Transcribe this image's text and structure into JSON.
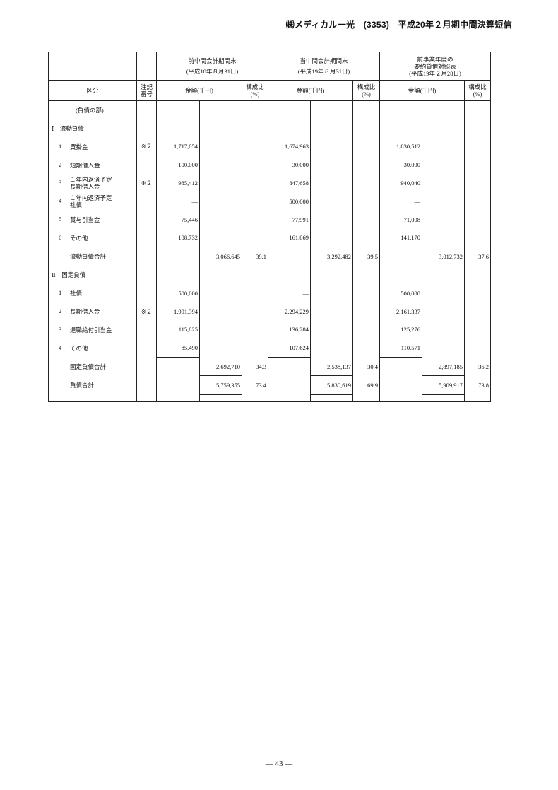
{
  "header": {
    "company": "㈱メディカル一光",
    "code": "(3353)",
    "title": "平成20年２月期中間決算短信"
  },
  "table": {
    "col_category": "区分",
    "col_note": "注記\n番号",
    "col_amount": "金額(千円)",
    "col_ratio": "構成比\n(%)",
    "periods": [
      {
        "title": "前中間会計期間末",
        "date": "(平成18年８月31日)"
      },
      {
        "title": "当中間会計期間末",
        "date": "(平成19年８月31日)"
      },
      {
        "title": "前事業年度の\n要約貸借対照表",
        "date": "(平成19年２月28日)"
      }
    ],
    "rows": [
      {
        "type": "part",
        "label": "(負債の部)"
      },
      {
        "type": "section",
        "label": "Ⅰ　流動負債"
      },
      {
        "type": "item",
        "no": "1",
        "label": "買掛金",
        "note": "※２",
        "vals": [
          [
            "1,717,054",
            "",
            ""
          ],
          [
            "1,674,963",
            "",
            ""
          ],
          [
            "1,830,512",
            "",
            ""
          ]
        ]
      },
      {
        "type": "item",
        "no": "2",
        "label": "短期借入金",
        "note": "",
        "vals": [
          [
            "100,000",
            "",
            ""
          ],
          [
            "30,000",
            "",
            ""
          ],
          [
            "30,000",
            "",
            ""
          ]
        ]
      },
      {
        "type": "item",
        "no": "3",
        "label": "１年内返済予定\n長期借入金",
        "note": "※２",
        "vals": [
          [
            "985,412",
            "",
            ""
          ],
          [
            "847,658",
            "",
            ""
          ],
          [
            "940,040",
            "",
            ""
          ]
        ]
      },
      {
        "type": "item",
        "no": "4",
        "label": "１年内返済予定\n社債",
        "note": "",
        "vals": [
          [
            "—",
            "",
            ""
          ],
          [
            "500,000",
            "",
            ""
          ],
          [
            "—",
            "",
            ""
          ]
        ]
      },
      {
        "type": "item",
        "no": "5",
        "label": "賞与引当金",
        "note": "",
        "vals": [
          [
            "75,446",
            "",
            ""
          ],
          [
            "77,991",
            "",
            ""
          ],
          [
            "71,008",
            "",
            ""
          ]
        ]
      },
      {
        "type": "item",
        "no": "6",
        "label": "その他",
        "note": "",
        "vals": [
          [
            "188,732",
            "",
            ""
          ],
          [
            "161,869",
            "",
            ""
          ],
          [
            "141,170",
            "",
            ""
          ]
        ]
      },
      {
        "type": "total",
        "label": "流動負債合計",
        "note": "",
        "vals": [
          [
            "",
            "3,066,645",
            "39.1"
          ],
          [
            "",
            "3,292,482",
            "39.5"
          ],
          [
            "",
            "3,012,732",
            "37.6"
          ]
        ]
      },
      {
        "type": "section",
        "label": "Ⅱ　固定負債"
      },
      {
        "type": "item",
        "no": "1",
        "label": "社債",
        "note": "",
        "vals": [
          [
            "500,000",
            "",
            ""
          ],
          [
            "—",
            "",
            ""
          ],
          [
            "500,000",
            "",
            ""
          ]
        ]
      },
      {
        "type": "item",
        "no": "2",
        "label": "長期借入金",
        "note": "※２",
        "vals": [
          [
            "1,991,394",
            "",
            ""
          ],
          [
            "2,294,229",
            "",
            ""
          ],
          [
            "2,161,337",
            "",
            ""
          ]
        ]
      },
      {
        "type": "item",
        "no": "3",
        "label": "退職給付引当金",
        "note": "",
        "vals": [
          [
            "115,825",
            "",
            ""
          ],
          [
            "136,284",
            "",
            ""
          ],
          [
            "125,276",
            "",
            ""
          ]
        ]
      },
      {
        "type": "item",
        "no": "4",
        "label": "その他",
        "note": "",
        "vals": [
          [
            "85,490",
            "",
            ""
          ],
          [
            "107,624",
            "",
            ""
          ],
          [
            "110,571",
            "",
            ""
          ]
        ]
      },
      {
        "type": "total",
        "label": "固定負債合計",
        "note": "",
        "vals": [
          [
            "",
            "2,692,710",
            "34.3"
          ],
          [
            "",
            "2,538,137",
            "30.4"
          ],
          [
            "",
            "2,897,185",
            "36.2"
          ]
        ]
      },
      {
        "type": "total",
        "label": "負債合計",
        "note": "",
        "vals": [
          [
            "",
            "5,759,355",
            "73.4"
          ],
          [
            "",
            "5,830,619",
            "69.9"
          ],
          [
            "",
            "5,909,917",
            "73.8"
          ]
        ]
      }
    ]
  },
  "footer": {
    "page": "— 43 —"
  }
}
